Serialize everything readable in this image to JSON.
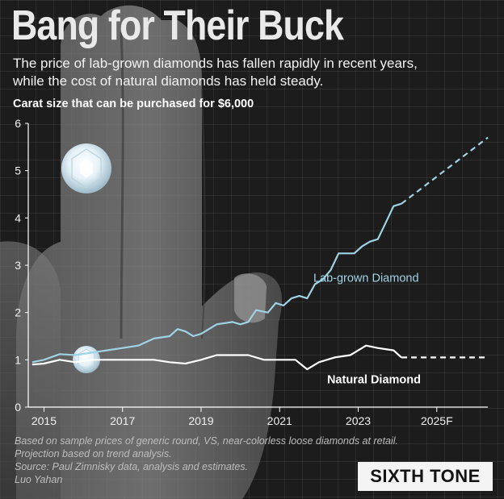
{
  "header": {
    "title": "Bang for Their Buck",
    "subtitle_lines": [
      "The price of lab-grown diamonds has fallen rapidly in recent years,",
      "while the cost of natural diamonds has held steady."
    ]
  },
  "footnote": {
    "lines": [
      "Based on sample prices of generic round, VS, near-colorless loose diamonds at retail.",
      "Projection based on trend analysis.",
      "Source: Paul Zimnisky data, analysis and estimates.",
      "Luo Yahan"
    ]
  },
  "logo": {
    "text": "SIXTH TONE"
  },
  "colors": {
    "background": "#1c1c1c",
    "lab_grown": "#9fd2e3",
    "natural": "#ffffff"
  },
  "chart_data": {
    "type": "line",
    "title": "Carat size that can be purchased for $6,000",
    "xlabel": "",
    "ylabel": "",
    "ylim": [
      0,
      6
    ],
    "xlim": [
      2014.6,
      2026.3
    ],
    "yticks": [
      0,
      1,
      2,
      3,
      4,
      5,
      6
    ],
    "ytick_labels": [
      "0",
      "1",
      "2",
      "3",
      "4",
      "5",
      "6"
    ],
    "xticks": [
      2015,
      2017,
      2019,
      2021,
      2023,
      2025
    ],
    "xtick_labels": [
      "2015",
      "2017",
      "2019",
      "2021",
      "2023",
      "2025F"
    ],
    "grid": false,
    "series": [
      {
        "name": "Lab-grown Diamond",
        "color": "#9fd2e3",
        "values": [
          [
            2014.7,
            0.95
          ],
          [
            2015.0,
            1.0
          ],
          [
            2015.4,
            1.12
          ],
          [
            2015.8,
            1.1
          ],
          [
            2016.2,
            1.15
          ],
          [
            2016.6,
            1.2
          ],
          [
            2017.0,
            1.25
          ],
          [
            2017.4,
            1.3
          ],
          [
            2017.8,
            1.45
          ],
          [
            2018.2,
            1.5
          ],
          [
            2018.4,
            1.65
          ],
          [
            2018.6,
            1.6
          ],
          [
            2018.8,
            1.5
          ],
          [
            2019.0,
            1.55
          ],
          [
            2019.4,
            1.75
          ],
          [
            2019.8,
            1.8
          ],
          [
            2020.0,
            1.75
          ],
          [
            2020.2,
            1.8
          ],
          [
            2020.4,
            2.05
          ],
          [
            2020.7,
            2.0
          ],
          [
            2020.9,
            2.2
          ],
          [
            2021.1,
            2.15
          ],
          [
            2021.3,
            2.3
          ],
          [
            2021.5,
            2.35
          ],
          [
            2021.7,
            2.3
          ],
          [
            2021.9,
            2.6
          ],
          [
            2022.1,
            2.7
          ],
          [
            2022.3,
            2.9
          ],
          [
            2022.5,
            3.25
          ],
          [
            2022.7,
            3.25
          ],
          [
            2022.9,
            3.25
          ],
          [
            2023.1,
            3.4
          ],
          [
            2023.3,
            3.5
          ],
          [
            2023.5,
            3.55
          ],
          [
            2023.7,
            3.9
          ],
          [
            2023.9,
            4.25
          ],
          [
            2024.1,
            4.3
          ]
        ],
        "projection": [
          [
            2024.1,
            4.3
          ],
          [
            2026.3,
            5.7
          ]
        ]
      },
      {
        "name": "Natural Diamond",
        "color": "#ffffff",
        "values": [
          [
            2014.7,
            0.9
          ],
          [
            2015.0,
            0.92
          ],
          [
            2015.4,
            1.0
          ],
          [
            2015.8,
            0.95
          ],
          [
            2016.2,
            1.0
          ],
          [
            2016.6,
            1.0
          ],
          [
            2017.0,
            1.0
          ],
          [
            2017.4,
            1.0
          ],
          [
            2017.8,
            1.0
          ],
          [
            2018.2,
            0.95
          ],
          [
            2018.6,
            0.92
          ],
          [
            2019.0,
            1.0
          ],
          [
            2019.4,
            1.1
          ],
          [
            2019.8,
            1.1
          ],
          [
            2020.2,
            1.1
          ],
          [
            2020.6,
            1.0
          ],
          [
            2021.0,
            1.0
          ],
          [
            2021.4,
            1.0
          ],
          [
            2021.7,
            0.8
          ],
          [
            2022.0,
            0.95
          ],
          [
            2022.4,
            1.05
          ],
          [
            2022.8,
            1.1
          ],
          [
            2023.0,
            1.2
          ],
          [
            2023.2,
            1.3
          ],
          [
            2023.5,
            1.25
          ],
          [
            2023.9,
            1.2
          ],
          [
            2024.1,
            1.05
          ]
        ],
        "projection": [
          [
            2024.1,
            1.05
          ],
          [
            2026.3,
            1.05
          ]
        ]
      }
    ]
  }
}
